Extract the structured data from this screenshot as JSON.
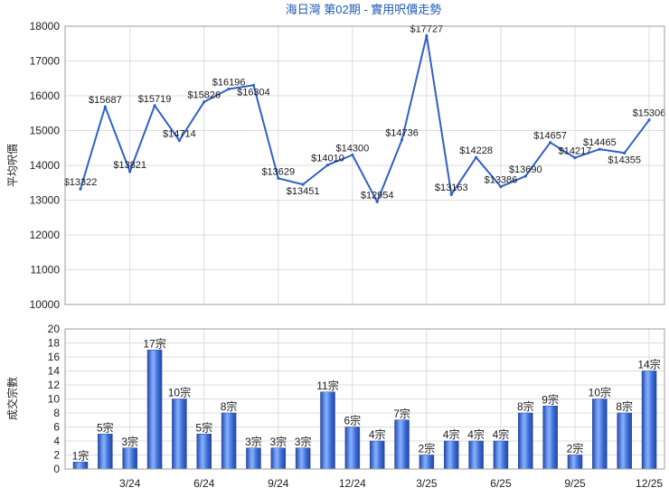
{
  "colors": {
    "title": "#1f5ab6",
    "line": "#2f60c8",
    "grid": "#dcdcdc",
    "frame": "#9c9c9c",
    "bar_gradient": [
      "#2447a6",
      "#6f9cf2",
      "#86b0fa",
      "#3f6fd8",
      "#2246a4"
    ],
    "bar_edge": "#2a4aa0"
  },
  "chart_data": [
    {
      "type": "line",
      "title": "海日灣 第02期 - 實用呎價走勢",
      "ylabel": "平均呎價",
      "ylim": [
        10000,
        18000
      ],
      "yticks": [
        10000,
        11000,
        12000,
        13000,
        14000,
        15000,
        16000,
        17000,
        18000
      ],
      "grid": true,
      "x": [
        "1/24",
        "2/24",
        "3/24",
        "4/24",
        "5/24",
        "6/24",
        "7/24",
        "8/24",
        "9/24",
        "10/24",
        "11/24",
        "12/24",
        "1/25",
        "2/25",
        "3/25",
        "4/25",
        "5/25",
        "6/25",
        "7/25",
        "8/25",
        "9/25",
        "10/25",
        "11/25",
        "12/25"
      ],
      "values": [
        13322,
        15687,
        13821,
        15719,
        14714,
        15826,
        16196,
        16304,
        13629,
        13451,
        14010,
        14300,
        12954,
        14736,
        17727,
        13163,
        14228,
        13386,
        13690,
        14657,
        14217,
        14465,
        14355,
        15306
      ],
      "data_labels": [
        "$13322",
        "$15687",
        "$13821",
        "$15719",
        "$14714",
        "$15826",
        "$16196",
        "$16304",
        "$13629",
        "$13451",
        "$14010",
        "$14300",
        "$12954",
        "$14736",
        "$17727",
        "$13163",
        "$14228",
        "$13386",
        "$13690",
        "$14657",
        "$14217",
        "$14465",
        "$14355",
        "$15306"
      ]
    },
    {
      "type": "bar",
      "ylabel": "成交宗數",
      "ylim": [
        0,
        20
      ],
      "yticks": [
        0,
        2,
        4,
        6,
        8,
        10,
        12,
        14,
        16,
        18,
        20
      ],
      "grid": true,
      "x": [
        "1/24",
        "2/24",
        "3/24",
        "4/24",
        "5/24",
        "6/24",
        "7/24",
        "8/24",
        "9/24",
        "10/24",
        "11/24",
        "12/24",
        "1/25",
        "2/25",
        "3/25",
        "4/25",
        "5/25",
        "6/25",
        "7/25",
        "8/25",
        "9/25",
        "10/25",
        "11/25",
        "12/25"
      ],
      "xticks": [
        "3/24",
        "6/24",
        "9/24",
        "12/24",
        "3/25",
        "6/25",
        "9/25",
        "12/25"
      ],
      "values": [
        1,
        5,
        3,
        17,
        10,
        5,
        8,
        3,
        3,
        3,
        11,
        6,
        4,
        7,
        2,
        4,
        4,
        4,
        8,
        9,
        2,
        10,
        8,
        14
      ],
      "data_labels": [
        "1宗",
        "5宗",
        "3宗",
        "17宗",
        "10宗",
        "5宗",
        "8宗",
        "3宗",
        "3宗",
        "3宗",
        "11宗",
        "6宗",
        "4宗",
        "7宗",
        "2宗",
        "4宗",
        "4宗",
        "4宗",
        "8宗",
        "9宗",
        "2宗",
        "10宗",
        "8宗",
        "14宗"
      ]
    }
  ]
}
